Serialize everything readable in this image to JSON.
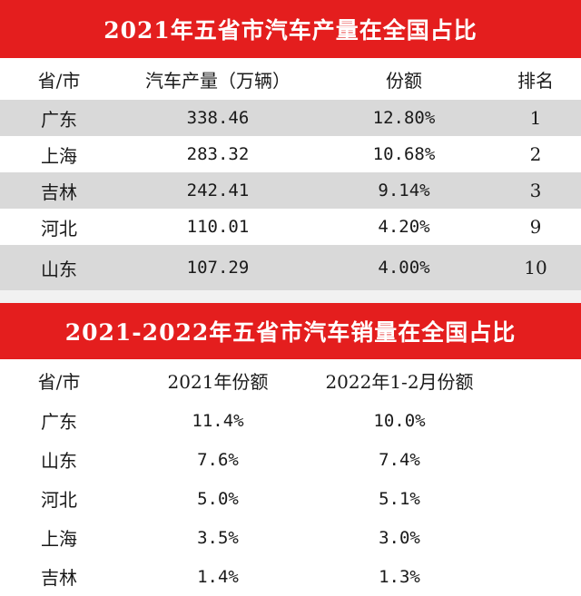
{
  "table1": {
    "title": "2021年五省市汽车产量在全国占比",
    "headers": [
      "省/市",
      "汽车产量（万辆）",
      "份额",
      "排名"
    ],
    "rows": [
      [
        "广东",
        "338.46",
        "12.80%",
        "1"
      ],
      [
        "上海",
        "283.32",
        "10.68%",
        "2"
      ],
      [
        "吉林",
        "242.41",
        "9.14%",
        "3"
      ],
      [
        "河北",
        "110.01",
        "4.20%",
        "9"
      ],
      [
        "山东",
        "107.29",
        "4.00%",
        "10"
      ]
    ]
  },
  "table2": {
    "title": "2021-2022年五省市汽车销量在全国占比",
    "headers": [
      "省/市",
      "2021年份额",
      "2022年1-2月份额"
    ],
    "rows": [
      [
        "广东",
        "11.4%",
        "10.0%"
      ],
      [
        "山东",
        "7.6%",
        "7.4%"
      ],
      [
        "河北",
        "5.0%",
        "5.1%"
      ],
      [
        "上海",
        "3.5%",
        "3.0%"
      ],
      [
        "吉林",
        "1.4%",
        "1.3%"
      ]
    ]
  },
  "colors": {
    "banner": "#e41e1e",
    "row_shade": "#d9d9d9",
    "background": "#ffffff"
  }
}
